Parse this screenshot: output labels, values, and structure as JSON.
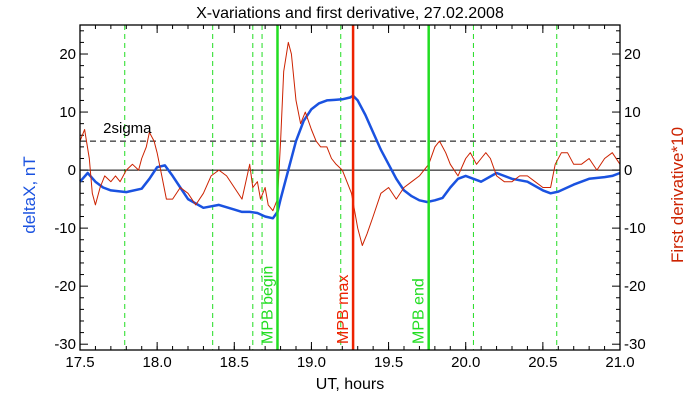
{
  "chart_data": {
    "type": "line",
    "title": "X-variations and first derivative, 27.02.2008",
    "xlabel": "UT, hours",
    "ylabel_left": "deltaX, nT",
    "ylabel_right": "First derivative*10",
    "xlim": [
      17.5,
      21.0
    ],
    "ylim": [
      -31,
      25
    ],
    "x_ticks": [
      "17.5",
      "18.0",
      "18.5",
      "19.0",
      "19.5",
      "20.0",
      "20.5",
      "21.0"
    ],
    "y_ticks": [
      "20",
      "10",
      "0",
      "-10",
      "-20",
      "-30"
    ],
    "threshold": {
      "label": "2sigma",
      "value": 5
    },
    "zero_line": 0,
    "dashed_markers": [
      17.79,
      18.36,
      18.62,
      18.68,
      19.19,
      20.05,
      20.59
    ],
    "markers": [
      {
        "label": "MPB begin",
        "x": 18.78,
        "color": "#22dd22"
      },
      {
        "label": "MPB max",
        "x": 19.27,
        "color": "#ee2200"
      },
      {
        "label": "MPB end",
        "x": 19.76,
        "color": "#22dd22"
      }
    ],
    "colors": {
      "deltaX": "#1a52e0",
      "derivative": "#cc2200",
      "left_axis_label": "#1a52e0",
      "right_axis_label": "#cc2200",
      "marker_text_green": "#22dd22",
      "marker_text_red": "#ee2200"
    },
    "series": [
      {
        "id": "deltaX",
        "x": [
          17.5,
          17.55,
          17.6,
          17.65,
          17.7,
          17.8,
          17.9,
          17.95,
          18.0,
          18.05,
          18.1,
          18.15,
          18.2,
          18.3,
          18.4,
          18.5,
          18.55,
          18.6,
          18.65,
          18.7,
          18.75,
          18.78,
          18.8,
          18.85,
          18.9,
          18.95,
          19.0,
          19.05,
          19.1,
          19.15,
          19.2,
          19.25,
          19.27,
          19.3,
          19.35,
          19.4,
          19.45,
          19.5,
          19.55,
          19.6,
          19.65,
          19.7,
          19.75,
          19.8,
          19.85,
          19.9,
          19.95,
          20.0,
          20.05,
          20.1,
          20.2,
          20.3,
          20.4,
          20.5,
          20.55,
          20.6,
          20.7,
          20.8,
          20.9,
          20.95,
          21.0
        ],
        "values": [
          -2,
          -0.5,
          -2,
          -3,
          -3.5,
          -3.8,
          -3.2,
          -1.5,
          0.5,
          0.8,
          -1,
          -3,
          -5,
          -6.5,
          -6,
          -6.8,
          -7.2,
          -7.2,
          -7.4,
          -8,
          -8.3,
          -7.2,
          -5,
          0,
          5,
          8.5,
          10.5,
          11.5,
          12,
          12.1,
          12.2,
          12.5,
          12.8,
          12,
          9.5,
          6.5,
          3.5,
          1,
          -1.5,
          -3.5,
          -4.5,
          -5.2,
          -5.5,
          -5.2,
          -4.8,
          -3,
          -1.5,
          -1,
          -1.5,
          -2,
          -0.5,
          -1.5,
          -2,
          -3.5,
          -4,
          -3.7,
          -2.5,
          -1.5,
          -1.2,
          -1,
          -0.5
        ]
      },
      {
        "id": "derivative",
        "x": [
          17.5,
          17.53,
          17.56,
          17.58,
          17.6,
          17.63,
          17.66,
          17.7,
          17.73,
          17.76,
          17.8,
          17.84,
          17.88,
          17.9,
          17.93,
          17.95,
          17.98,
          18.0,
          18.03,
          18.06,
          18.1,
          18.15,
          18.2,
          18.25,
          18.3,
          18.35,
          18.4,
          18.45,
          18.5,
          18.55,
          18.6,
          18.62,
          18.65,
          18.67,
          18.7,
          18.72,
          18.75,
          18.78,
          18.8,
          18.82,
          18.85,
          18.87,
          18.9,
          18.93,
          18.96,
          19.0,
          19.03,
          19.06,
          19.1,
          19.13,
          19.16,
          19.2,
          19.23,
          19.26,
          19.28,
          19.3,
          19.33,
          19.36,
          19.4,
          19.45,
          19.5,
          19.55,
          19.6,
          19.65,
          19.7,
          19.73,
          19.76,
          19.8,
          19.83,
          19.87,
          19.9,
          19.95,
          20.0,
          20.03,
          20.07,
          20.1,
          20.13,
          20.16,
          20.2,
          20.25,
          20.3,
          20.35,
          20.4,
          20.45,
          20.5,
          20.55,
          20.58,
          20.62,
          20.66,
          20.7,
          20.75,
          20.8,
          20.85,
          20.9,
          20.95,
          21.0
        ],
        "values": [
          5,
          7,
          2,
          -4,
          -6,
          -3,
          -1,
          -2,
          -1,
          -2,
          0,
          1,
          0,
          2,
          4,
          6.5,
          5,
          3,
          -1,
          -5,
          -5,
          -3,
          -4,
          -6,
          -4,
          -1,
          0,
          -1,
          -3,
          -5,
          1,
          -3,
          -2,
          -5,
          -3,
          -6,
          -7,
          -5,
          5,
          17,
          22,
          20,
          12,
          8,
          10,
          7,
          5,
          4,
          4,
          2,
          1,
          0,
          -2,
          -4,
          -7,
          -10,
          -13,
          -11,
          -8,
          -4,
          -3,
          -5,
          -3,
          -2,
          -1,
          0,
          1,
          4,
          5,
          3,
          1,
          -1,
          2,
          3,
          1,
          2,
          3,
          2,
          -1,
          -2,
          -2,
          -1,
          -1,
          -2,
          -3,
          -3,
          1,
          3,
          3,
          1,
          1,
          2,
          0,
          2,
          3,
          1
        ]
      }
    ]
  }
}
